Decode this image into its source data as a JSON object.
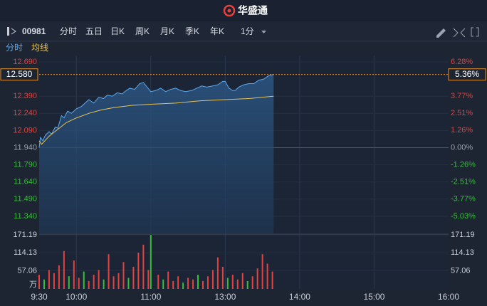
{
  "header": {
    "logo_text": "华盛通"
  },
  "toolbar": {
    "code": "00981",
    "tabs": [
      "分时",
      "五日",
      "日K",
      "周K",
      "月K",
      "季K",
      "年K"
    ],
    "period": "1分"
  },
  "chart_data": {
    "type": "line",
    "xlim": [
      0,
      330
    ],
    "xticks": [
      {
        "value": 0,
        "label": "9:30"
      },
      {
        "value": 30,
        "label": "10:00"
      },
      {
        "value": 90,
        "label": "11:00"
      },
      {
        "value": 150,
        "label": "13:00"
      },
      {
        "value": 210,
        "label": "14:00"
      },
      {
        "value": 270,
        "label": "15:00"
      },
      {
        "value": 330,
        "label": "16:00"
      }
    ],
    "ylim": [
      11.19,
      12.69
    ],
    "yticks": [
      {
        "value": 12.69,
        "label": "12.690"
      },
      {
        "value": 12.39,
        "label": "12.390"
      },
      {
        "value": 12.24,
        "label": "12.240"
      },
      {
        "value": 12.09,
        "label": "12.090"
      },
      {
        "value": 11.94,
        "label": "11.940"
      },
      {
        "value": 11.79,
        "label": "11.790"
      },
      {
        "value": 11.64,
        "label": "11.640"
      },
      {
        "value": 11.49,
        "label": "11.490"
      },
      {
        "value": 11.34,
        "label": "11.340"
      }
    ],
    "y2lim": [
      -6.28,
      6.28
    ],
    "y2ticks": [
      {
        "value": 6.28,
        "label": "6.28%"
      },
      {
        "value": 3.77,
        "label": "3.77%"
      },
      {
        "value": 2.51,
        "label": "2.51%"
      },
      {
        "value": 1.26,
        "label": "1.26%"
      },
      {
        "value": 0,
        "label": "0.00%"
      },
      {
        "value": -1.26,
        "label": "-1.26%"
      },
      {
        "value": -2.51,
        "label": "-2.51%"
      },
      {
        "value": -3.77,
        "label": "-3.77%"
      },
      {
        "value": -5.03,
        "label": "-5.03%"
      }
    ],
    "axis_colors": {
      "up": "#e8403c",
      "down": "#35c135",
      "flat": "#9aa3b0"
    },
    "last_price": {
      "value": 12.58,
      "label": "12.580"
    },
    "last_change": {
      "value": 5.36,
      "label": "5.36%"
    },
    "series": [
      {
        "name": "分时",
        "color": "#5aa9f0",
        "x": [
          0,
          1,
          3,
          5,
          8,
          10,
          13,
          15,
          18,
          20,
          23,
          26,
          30,
          34,
          38,
          40,
          44,
          48,
          52,
          55,
          59,
          63,
          67,
          69,
          73,
          77,
          81,
          84,
          87,
          90,
          94,
          98,
          102,
          106,
          110,
          114,
          118,
          123,
          127,
          131,
          135,
          140,
          144,
          148,
          150,
          153,
          156,
          158,
          161,
          165,
          169,
          173,
          177,
          181,
          185,
          189
        ],
        "values": [
          11.94,
          12.03,
          12.0,
          12.05,
          12.08,
          12.06,
          12.12,
          12.11,
          12.22,
          12.2,
          12.26,
          12.24,
          12.28,
          12.3,
          12.34,
          12.36,
          12.33,
          12.38,
          12.37,
          12.4,
          12.39,
          12.42,
          12.41,
          12.43,
          12.46,
          12.45,
          12.5,
          12.51,
          12.47,
          12.43,
          12.44,
          12.46,
          12.43,
          12.45,
          12.46,
          12.44,
          12.43,
          12.44,
          12.46,
          12.48,
          12.47,
          12.48,
          12.49,
          12.52,
          12.52,
          12.46,
          12.44,
          12.44,
          12.47,
          12.49,
          12.5,
          12.5,
          12.53,
          12.54,
          12.57,
          12.58
        ]
      },
      {
        "name": "均线",
        "color": "#e8c35a",
        "x": [
          0,
          2,
          8,
          15,
          22,
          30,
          40,
          50,
          60,
          75,
          90,
          110,
          130,
          150,
          170,
          189
        ],
        "values": [
          12.0,
          11.97,
          12.04,
          12.1,
          12.16,
          12.2,
          12.24,
          12.27,
          12.29,
          12.31,
          12.32,
          12.33,
          12.35,
          12.36,
          12.37,
          12.39
        ]
      }
    ],
    "volume": {
      "unit": "万",
      "ylim": [
        0,
        171.19
      ],
      "yticks": [
        171.19,
        114.13,
        57.06
      ],
      "x": [
        0,
        4,
        8,
        12,
        16,
        20,
        24,
        28,
        32,
        36,
        40,
        44,
        48,
        52,
        56,
        60,
        64,
        68,
        72,
        76,
        80,
        84,
        88,
        90,
        96,
        100,
        104,
        108,
        112,
        116,
        120,
        124,
        128,
        132,
        136,
        140,
        144,
        148,
        152,
        156,
        160,
        164,
        168,
        172,
        176,
        180,
        184,
        188
      ],
      "values": [
        45,
        30,
        60,
        50,
        75,
        120,
        40,
        90,
        35,
        55,
        25,
        45,
        60,
        30,
        110,
        40,
        50,
        85,
        35,
        70,
        115,
        140,
        60,
        171,
        45,
        30,
        55,
        25,
        40,
        20,
        35,
        30,
        45,
        25,
        40,
        60,
        100,
        70,
        35,
        45,
        30,
        50,
        25,
        40,
        65,
        110,
        80,
        55
      ],
      "colors": [
        "#e8403c",
        "#35c135",
        "#e8403c",
        "#e8403c",
        "#e8403c",
        "#e8403c",
        "#35c135",
        "#e8403c",
        "#e8403c",
        "#35c135",
        "#e8403c",
        "#e8403c",
        "#e8403c",
        "#35c135",
        "#e8403c",
        "#e8403c",
        "#e8403c",
        "#e8403c",
        "#35c135",
        "#e8403c",
        "#e8403c",
        "#e8403c",
        "#e8403c",
        "#35c135",
        "#e8403c",
        "#35c135",
        "#e8403c",
        "#e8403c",
        "#e8403c",
        "#35c135",
        "#e8403c",
        "#e8403c",
        "#35c135",
        "#e8403c",
        "#e8403c",
        "#e8403c",
        "#e8403c",
        "#e8403c",
        "#35c135",
        "#e8403c",
        "#e8403c",
        "#e8403c",
        "#35c135",
        "#e8403c",
        "#e8403c",
        "#e8403c",
        "#e8403c",
        "#e8403c"
      ]
    }
  }
}
